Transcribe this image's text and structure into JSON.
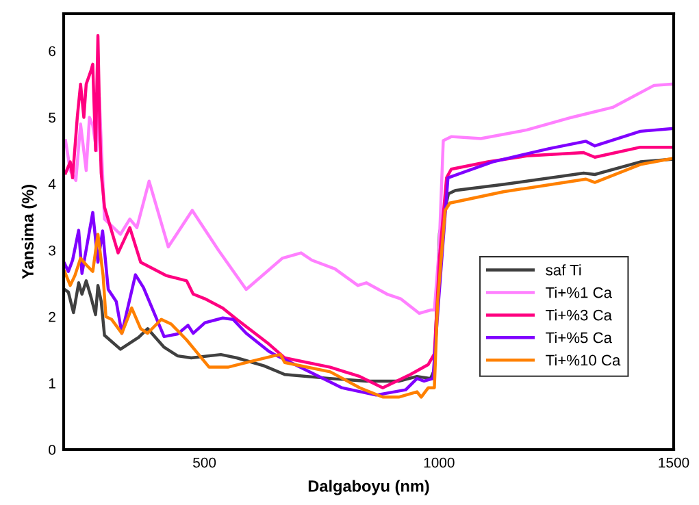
{
  "chart_data": {
    "type": "line",
    "xlabel": "Dalgaboyu (nm)",
    "ylabel": "Yansima (%)",
    "xlim": [
      200,
      1500
    ],
    "ylim": [
      0,
      6.56
    ],
    "xticks": [
      500,
      1000,
      1500
    ],
    "yticks": [
      0,
      1,
      2,
      3,
      4,
      5,
      6
    ],
    "grid": false,
    "legend": "right",
    "marker": "none",
    "line_style": "solid",
    "series": [
      {
        "name": "saf Ti",
        "color": "#404040",
        "x": [
          202,
          210,
          221,
          232,
          239,
          248,
          258,
          268,
          273,
          280,
          287,
          321,
          360,
          379,
          414,
          443,
          472,
          535,
          569,
          627,
          671,
          768,
          845,
          914,
          953,
          982,
          990,
          1001,
          1020,
          1035,
          1137,
          1308,
          1332,
          1429,
          1497
        ],
        "values": [
          2.41,
          2.37,
          2.06,
          2.51,
          2.34,
          2.54,
          2.3,
          2.03,
          2.47,
          2.23,
          1.72,
          1.51,
          1.69,
          1.82,
          1.54,
          1.41,
          1.38,
          1.43,
          1.38,
          1.26,
          1.13,
          1.07,
          1.03,
          1.03,
          1.1,
          1.07,
          1.2,
          3.26,
          3.85,
          3.9,
          3.99,
          4.16,
          4.14,
          4.33,
          4.37
        ]
      },
      {
        "name": "Ti+%1 Ca",
        "color": "#ff80ff",
        "x": [
          204,
          214,
          226,
          236,
          248,
          255,
          262,
          270,
          276,
          287,
          321,
          341,
          356,
          382,
          423,
          474,
          530,
          589,
          666,
          706,
          729,
          778,
          827,
          845,
          889,
          918,
          958,
          982,
          990,
          1000,
          1009,
          1026,
          1089,
          1187,
          1283,
          1370,
          1458,
          1497
        ],
        "values": [
          4.65,
          4.2,
          4.05,
          4.9,
          4.2,
          5.0,
          4.88,
          4.5,
          5.3,
          3.47,
          3.24,
          3.47,
          3.34,
          4.04,
          3.05,
          3.6,
          3.0,
          2.41,
          2.88,
          2.96,
          2.85,
          2.72,
          2.47,
          2.51,
          2.34,
          2.27,
          2.05,
          2.1,
          2.1,
          3.0,
          4.65,
          4.71,
          4.68,
          4.81,
          5.0,
          5.15,
          5.48,
          5.5
        ]
      },
      {
        "name": "Ti+%3 Ca",
        "color": "#ff0080",
        "x": [
          204,
          214,
          219,
          229,
          236,
          243,
          248,
          258,
          262,
          268,
          273,
          277,
          280,
          287,
          316,
          341,
          364,
          418,
          462,
          476,
          501,
          539,
          569,
          637,
          671,
          768,
          831,
          880,
          939,
          977,
          990,
          1001,
          1016,
          1026,
          1104,
          1187,
          1308,
          1332,
          1429,
          1497
        ],
        "values": [
          4.16,
          4.33,
          4.09,
          5.0,
          5.5,
          5.0,
          5.5,
          5.7,
          5.8,
          4.5,
          6.23,
          4.84,
          4.16,
          3.65,
          2.96,
          3.34,
          2.82,
          2.62,
          2.54,
          2.34,
          2.27,
          2.13,
          1.96,
          1.59,
          1.38,
          1.24,
          1.1,
          0.93,
          1.13,
          1.28,
          1.44,
          2.9,
          4.09,
          4.22,
          4.33,
          4.42,
          4.47,
          4.4,
          4.55,
          4.55
        ]
      },
      {
        "name": "Ti+%5 Ca",
        "color": "#8000ff",
        "x": [
          202,
          210,
          219,
          232,
          239,
          262,
          273,
          283,
          295,
          312,
          324,
          353,
          370,
          414,
          443,
          465,
          476,
          501,
          539,
          561,
          589,
          637,
          647,
          793,
          866,
          929,
          953,
          968,
          987,
          999,
          1019,
          1114,
          1235,
          1313,
          1332,
          1429,
          1497
        ],
        "values": [
          2.8,
          2.68,
          2.85,
          3.3,
          2.65,
          3.57,
          2.82,
          3.29,
          2.41,
          2.23,
          1.75,
          2.63,
          2.44,
          1.7,
          1.74,
          1.87,
          1.75,
          1.91,
          1.98,
          1.96,
          1.75,
          1.48,
          1.44,
          0.93,
          0.82,
          0.9,
          1.07,
          1.03,
          1.07,
          2.23,
          4.09,
          4.33,
          4.53,
          4.64,
          4.57,
          4.79,
          4.83
        ]
      },
      {
        "name": "Ti+%10 Ca",
        "color": "#ff8000",
        "x": [
          202,
          214,
          224,
          236,
          248,
          262,
          273,
          284,
          290,
          302,
          324,
          345,
          364,
          379,
          408,
          429,
          462,
          510,
          550,
          589,
          647,
          662,
          671,
          768,
          831,
          880,
          914,
          953,
          962,
          977,
          990,
          997,
          1013,
          1023,
          1137,
          1313,
          1332,
          1429,
          1497
        ],
        "values": [
          2.68,
          2.47,
          2.62,
          2.88,
          2.78,
          2.68,
          3.24,
          2.62,
          2.0,
          1.96,
          1.75,
          2.13,
          1.82,
          1.75,
          1.96,
          1.89,
          1.65,
          1.24,
          1.24,
          1.31,
          1.41,
          1.43,
          1.31,
          1.17,
          0.93,
          0.79,
          0.79,
          0.87,
          0.79,
          0.93,
          0.93,
          2.23,
          3.6,
          3.71,
          3.88,
          4.07,
          4.02,
          4.29,
          4.38
        ]
      }
    ]
  }
}
